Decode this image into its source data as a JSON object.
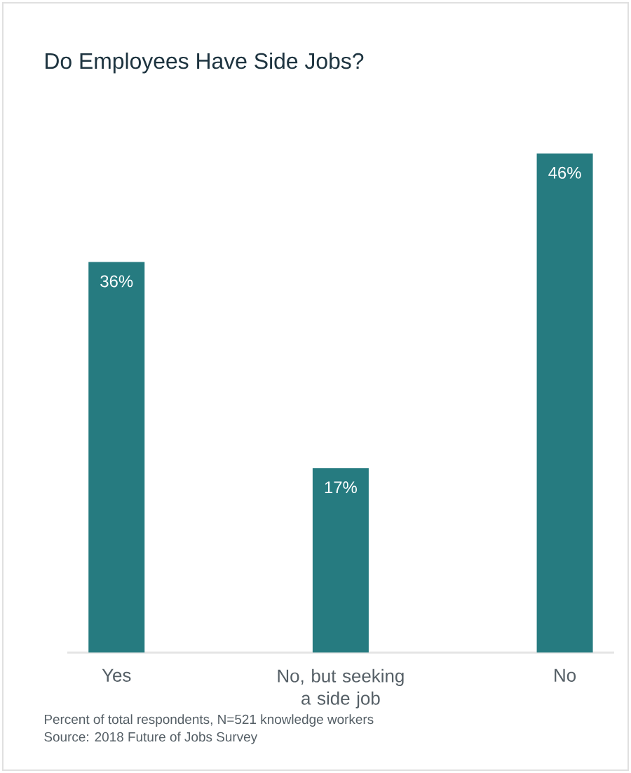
{
  "chart_data": {
    "type": "bar",
    "title": "Do Employees Have Side Jobs?",
    "categories": [
      "Yes",
      "No, but seeking a side job",
      "No"
    ],
    "values": [
      36,
      17,
      46
    ],
    "value_labels": [
      "36%",
      "17%",
      "46%"
    ],
    "color": "#267b80",
    "annotations": [
      "Percent of total respondents, N=521 knowledge workers",
      "Source: 2018 Future of Jobs Survey"
    ]
  }
}
